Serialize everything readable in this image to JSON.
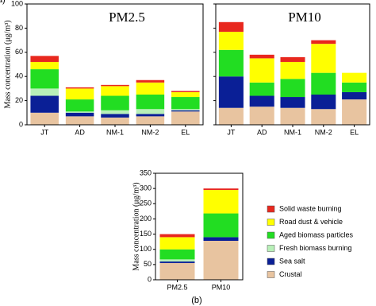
{
  "chart_data": [
    {
      "type": "stacked-bar",
      "title": "PM2.5",
      "y_label": "Mass concentration (μg/m³)",
      "categories": [
        "JT",
        "AD",
        "NM-1",
        "NM-2",
        "EL"
      ],
      "ylim": [
        0,
        100
      ],
      "yticks": [
        0,
        20,
        40,
        60,
        80,
        100
      ],
      "series": [
        {
          "color": "#e8c4a0",
          "values": [
            10,
            7,
            6,
            7,
            11
          ]
        },
        {
          "color": "#0a1f96",
          "values": [
            14,
            3,
            3,
            2,
            1
          ]
        },
        {
          "color": "#b8f0b8",
          "values": [
            6,
            1,
            3,
            4,
            1
          ]
        },
        {
          "color": "#22dd22",
          "values": [
            16,
            10,
            12,
            12,
            10
          ]
        },
        {
          "color": "#ffff00",
          "values": [
            6,
            9,
            8,
            10,
            4
          ]
        },
        {
          "color": "#e8281e",
          "values": [
            5,
            1,
            1,
            2,
            1
          ]
        }
      ]
    },
    {
      "type": "stacked-bar",
      "title": "PM10",
      "categories": [
        "JT",
        "AD",
        "NM-1",
        "NM-2",
        "EL"
      ],
      "ylim": [
        0,
        100
      ],
      "yticks": [
        0,
        20,
        40,
        60,
        80,
        100
      ],
      "caption": "(a)",
      "series": [
        {
          "color": "#e8c4a0",
          "values": [
            14,
            15,
            14,
            13,
            21
          ]
        },
        {
          "color": "#0a1f96",
          "values": [
            26,
            9,
            9,
            12,
            6
          ]
        },
        {
          "color": "#b8f0b8",
          "values": [
            0,
            0,
            0,
            0,
            0
          ]
        },
        {
          "color": "#22dd22",
          "values": [
            22,
            11,
            15,
            18,
            8
          ]
        },
        {
          "color": "#ffff00",
          "values": [
            15,
            20,
            14,
            24,
            8
          ]
        },
        {
          "color": "#e8281e",
          "values": [
            8,
            3,
            4,
            3,
            0
          ]
        }
      ]
    },
    {
      "type": "stacked-bar",
      "y_label": "Mass concentration (μg/m³)",
      "categories": [
        "PM2.5",
        "PM10"
      ],
      "caption": "(b)",
      "ylim": [
        0,
        350
      ],
      "yticks": [
        0,
        50,
        100,
        150,
        200,
        250,
        300,
        350
      ],
      "series": [
        {
          "name": "Crustal",
          "color": "#e8c4a0",
          "values": [
            55,
            128
          ]
        },
        {
          "name": "Sea salt",
          "color": "#0a1f96",
          "values": [
            5,
            12
          ]
        },
        {
          "name": "Fresh biomass burning",
          "color": "#b8f0b8",
          "values": [
            7,
            0
          ]
        },
        {
          "name": "Aged biomass particles",
          "color": "#22dd22",
          "values": [
            33,
            78
          ]
        },
        {
          "name": "Road dust & vehicle",
          "color": "#ffff00",
          "values": [
            40,
            77
          ]
        },
        {
          "name": "Solid waste burning",
          "color": "#e8281e",
          "values": [
            10,
            5
          ]
        }
      ]
    }
  ]
}
